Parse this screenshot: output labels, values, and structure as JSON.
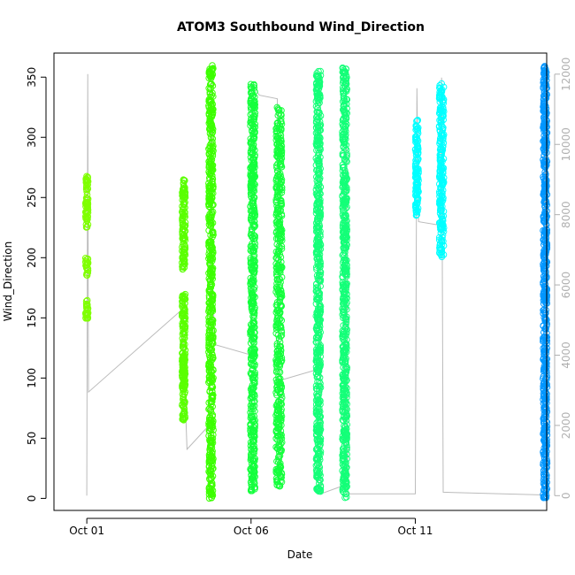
{
  "chart_data": {
    "type": "scatter",
    "title": "ATOM3 Southbound Wind_Direction",
    "xlabel": "Date",
    "ylabel": "Wind_Direction",
    "x_ticks": [
      "Oct 01",
      "Oct 06",
      "Oct 11"
    ],
    "x_range": [
      "2015-09-30",
      "2015-10-15"
    ],
    "ylim": [
      -10,
      370
    ],
    "y_ticks": [
      0,
      50,
      100,
      150,
      200,
      250,
      300,
      350
    ],
    "y2lim": [
      -420,
      12600
    ],
    "y2_ticks": [
      0,
      2000,
      4000,
      6000,
      8000,
      10000,
      12000
    ],
    "grid": false,
    "series": [
      {
        "color": "#7fff00",
        "clusters": [
          {
            "x": 1.0,
            "spread": 0.04,
            "ranges": [
              [
                255,
                268
              ],
              [
                225,
                255
              ],
              [
                148,
                165
              ],
              [
                185,
                200
              ]
            ]
          }
        ]
      },
      {
        "color": "#5aff00",
        "clusters": [
          {
            "x": 3.95,
            "spread": 0.05,
            "ranges": [
              [
                225,
                265
              ],
              [
                190,
                225
              ],
              [
                130,
                170
              ],
              [
                65,
                120
              ],
              [
                100,
                130
              ]
            ]
          }
        ]
      },
      {
        "color": "#3cff00",
        "clusters": [
          {
            "x": 4.78,
            "spread": 0.07,
            "ranges": [
              [
                270,
                360
              ],
              [
                200,
                270
              ],
              [
                150,
                200
              ],
              [
                90,
                150
              ],
              [
                30,
                90
              ],
              [
                0,
                30
              ]
            ]
          }
        ]
      },
      {
        "color": "#14ff3c",
        "clusters": [
          {
            "x": 6.05,
            "spread": 0.07,
            "ranges": [
              [
                270,
                345
              ],
              [
                200,
                270
              ],
              [
                140,
                200
              ],
              [
                90,
                140
              ],
              [
                20,
                90
              ],
              [
                5,
                20
              ]
            ]
          },
          {
            "x": 6.85,
            "spread": 0.09,
            "ranges": [
              [
                280,
                325
              ],
              [
                230,
                280
              ],
              [
                150,
                230
              ],
              [
                60,
                150
              ],
              [
                10,
                60
              ]
            ]
          }
        ]
      },
      {
        "color": "#14ff78",
        "clusters": [
          {
            "x": 8.05,
            "spread": 0.07,
            "ranges": [
              [
                280,
                355
              ],
              [
                220,
                280
              ],
              [
                150,
                220
              ],
              [
                90,
                150
              ],
              [
                5,
                90
              ]
            ]
          },
          {
            "x": 8.85,
            "spread": 0.07,
            "ranges": [
              [
                300,
                358
              ],
              [
                220,
                300
              ],
              [
                180,
                220
              ],
              [
                120,
                180
              ],
              [
                40,
                120
              ],
              [
                0,
                40
              ]
            ]
          }
        ]
      },
      {
        "color": "#00ffff",
        "clusters": [
          {
            "x": 11.05,
            "spread": 0.05,
            "ranges": [
              [
                250,
                315
              ],
              [
                235,
                250
              ]
            ]
          },
          {
            "x": 11.8,
            "spread": 0.07,
            "ranges": [
              [
                270,
                345
              ],
              [
                230,
                270
              ],
              [
                200,
                230
              ]
            ]
          }
        ]
      },
      {
        "color": "#0096ff",
        "clusters": [
          {
            "x": 14.95,
            "spread": 0.06,
            "ranges": [
              [
                280,
                360
              ],
              [
                220,
                280
              ],
              [
                150,
                220
              ],
              [
                80,
                150
              ],
              [
                30,
                80
              ],
              [
                0,
                30
              ]
            ]
          }
        ]
      }
    ],
    "counter_line": {
      "color": "#bbbbbb",
      "points": [
        [
          1.0,
          0
        ],
        [
          1.03,
          12000
        ],
        [
          1.05,
          2950
        ],
        [
          3.9,
          5300
        ],
        [
          4.05,
          1320
        ],
        [
          4.72,
          2000
        ],
        [
          4.8,
          12000
        ],
        [
          4.82,
          6100
        ],
        [
          4.9,
          4300
        ],
        [
          6.02,
          4000
        ],
        [
          6.07,
          11700
        ],
        [
          6.25,
          11400
        ],
        [
          6.8,
          11300
        ],
        [
          6.85,
          300
        ],
        [
          6.9,
          600
        ],
        [
          6.95,
          3300
        ],
        [
          8.05,
          3600
        ],
        [
          8.1,
          12000
        ],
        [
          8.12,
          50
        ],
        [
          8.85,
          300
        ],
        [
          8.9,
          12000
        ],
        [
          8.95,
          50
        ],
        [
          11.0,
          50
        ],
        [
          11.05,
          11600
        ],
        [
          11.1,
          7800
        ],
        [
          11.75,
          7700
        ],
        [
          11.8,
          11900
        ],
        [
          11.85,
          100
        ],
        [
          14.9,
          20
        ],
        [
          14.95,
          12300
        ],
        [
          15.0,
          20
        ]
      ]
    }
  }
}
